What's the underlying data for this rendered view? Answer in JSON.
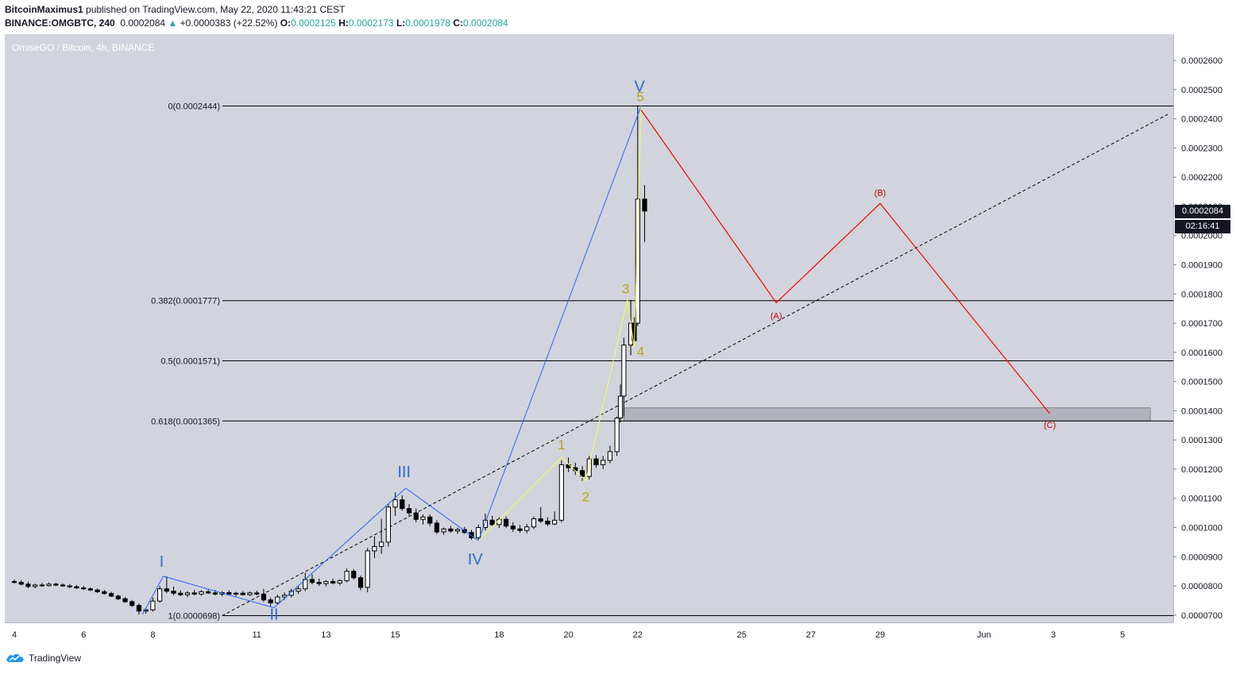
{
  "header": {
    "author": "BitcoinMaximus1",
    "published_text": " published on TradingView.com, May 22, 2020 11:43:21 CEST",
    "symbol_line": "BINANCE:OMGBTC, 240",
    "last": "0.0002084",
    "change": "+0.0000383 (+22.52%)",
    "o_label": "O:",
    "o": "0.0002125",
    "h_label": "H:",
    "h": "0.0002173",
    "l_label": "L:",
    "l": "0.0001978",
    "c_label": "C:",
    "c": "0.0002084"
  },
  "chart_title": "OmiseGO / Bitcoin, 4h, BINANCE",
  "price_tag": "0.0002084",
  "countdown_tag": "02:16:41",
  "footer": {
    "brand": "TradingView"
  },
  "colors": {
    "bg": "#d1d4dc",
    "blue": "#2962ff",
    "yellow": "#fdfd55",
    "red": "#ff0000",
    "wave_label": "#2b6bd6",
    "sub_label": "#b7a510",
    "abc": "#c00000"
  },
  "chart_data": {
    "type": "candlestick",
    "title": "OmiseGO / Bitcoin, 4h, BINANCE",
    "ylim": [
      6.75e-05,
      0.000269
    ],
    "y_ticks": [
      "0.0000700",
      "0.0000800",
      "0.0000900",
      "0.0001000",
      "0.0001100",
      "0.0001200",
      "0.0001300",
      "0.0001400",
      "0.0001500",
      "0.0001600",
      "0.0001700",
      "0.0001800",
      "0.0001900",
      "0.0002000",
      "0.0002100",
      "0.0002200",
      "0.0002300",
      "0.0002400",
      "0.0002500",
      "0.0002600"
    ],
    "x_ticks": [
      {
        "label": "4",
        "day": 4
      },
      {
        "label": "6",
        "day": 6
      },
      {
        "label": "8",
        "day": 8
      },
      {
        "label": "11",
        "day": 11
      },
      {
        "label": "13",
        "day": 13
      },
      {
        "label": "15",
        "day": 15
      },
      {
        "label": "18",
        "day": 18
      },
      {
        "label": "20",
        "day": 20
      },
      {
        "label": "22",
        "day": 22
      },
      {
        "label": "25",
        "day": 25
      },
      {
        "label": "27",
        "day": 27
      },
      {
        "label": "29",
        "day": 29
      },
      {
        "label": "Jun",
        "day": 32
      },
      {
        "label": "3",
        "day": 34
      },
      {
        "label": "5",
        "day": 36
      }
    ],
    "fib_levels": [
      {
        "label": "0(0.0002444)",
        "value": 0.0002444
      },
      {
        "label": "0.382(0.0001777)",
        "value": 0.0001777
      },
      {
        "label": "0.5(0.0001571)",
        "value": 0.0001571
      },
      {
        "label": "0.618(0.0001365)",
        "value": 0.0001365
      },
      {
        "label": "1(0.0000698)",
        "value": 6.98e-05
      }
    ],
    "support_zone": {
      "from_day": 21.6,
      "to_day": 36.8,
      "low": 0.0001365,
      "high": 0.000141
    },
    "trendline": {
      "points": [
        {
          "day": 10,
          "price": 6.98e-05
        },
        {
          "day": 37.3,
          "price": 0.0002415
        }
      ]
    },
    "major_waves": {
      "points": [
        {
          "day": 7.7,
          "price": 7.02e-05,
          "label": ""
        },
        {
          "day": 8.3,
          "price": 8.33e-05,
          "label": "I"
        },
        {
          "day": 11.5,
          "price": 7.25e-05,
          "label": "II"
        },
        {
          "day": 15.3,
          "price": 0.0001135,
          "label": "III"
        },
        {
          "day": 17.4,
          "price": 9.55e-05,
          "label": "IV"
        },
        {
          "day": 22.1,
          "price": 0.0002444,
          "label": "V"
        }
      ]
    },
    "minor_waves": {
      "points": [
        {
          "day": 17.4,
          "price": 9.55e-05,
          "label": ""
        },
        {
          "day": 19.8,
          "price": 0.000124,
          "label": "1"
        },
        {
          "day": 20.5,
          "price": 0.000116,
          "label": "2"
        },
        {
          "day": 21.7,
          "price": 0.000178,
          "label": "3"
        },
        {
          "day": 21.9,
          "price": 0.0001615,
          "label": "4"
        },
        {
          "day": 22.1,
          "price": 0.0002444,
          "label": "5"
        }
      ]
    },
    "correction": {
      "points": [
        {
          "day": 22.1,
          "price": 0.000243,
          "label": ""
        },
        {
          "day": 26.0,
          "price": 0.000177,
          "label": "(A)"
        },
        {
          "day": 29.0,
          "price": 0.000211,
          "label": "(B)"
        },
        {
          "day": 33.9,
          "price": 0.000139,
          "label": "(C)"
        }
      ]
    },
    "candles": [
      {
        "day": 4.0,
        "o": 8.15e-05,
        "h": 8.22e-05,
        "l": 8.08e-05,
        "c": 8.12e-05
      },
      {
        "day": 4.2,
        "o": 8.12e-05,
        "h": 8.2e-05,
        "l": 8.02e-05,
        "c": 8.06e-05
      },
      {
        "day": 4.4,
        "o": 8.06e-05,
        "h": 8.15e-05,
        "l": 7.92e-05,
        "c": 7.98e-05
      },
      {
        "day": 4.6,
        "o": 7.98e-05,
        "h": 8.08e-05,
        "l": 7.92e-05,
        "c": 8.03e-05
      },
      {
        "day": 4.8,
        "o": 8.03e-05,
        "h": 8.1e-05,
        "l": 7.97e-05,
        "c": 8.01e-05
      },
      {
        "day": 5.0,
        "o": 8.01e-05,
        "h": 8.12e-05,
        "l": 7.98e-05,
        "c": 8.06e-05
      },
      {
        "day": 5.2,
        "o": 8.06e-05,
        "h": 8.11e-05,
        "l": 7.99e-05,
        "c": 8.03e-05
      },
      {
        "day": 5.4,
        "o": 8.03e-05,
        "h": 8.09e-05,
        "l": 7.97e-05,
        "c": 8e-05
      },
      {
        "day": 5.6,
        "o": 8e-05,
        "h": 8.06e-05,
        "l": 7.92e-05,
        "c": 7.97e-05
      },
      {
        "day": 5.8,
        "o": 7.97e-05,
        "h": 8.03e-05,
        "l": 7.9e-05,
        "c": 7.93e-05
      },
      {
        "day": 6.0,
        "o": 7.93e-05,
        "h": 8e-05,
        "l": 7.86e-05,
        "c": 7.9e-05
      },
      {
        "day": 6.2,
        "o": 7.9e-05,
        "h": 7.95e-05,
        "l": 7.82e-05,
        "c": 7.86e-05
      },
      {
        "day": 6.4,
        "o": 7.86e-05,
        "h": 7.91e-05,
        "l": 7.76e-05,
        "c": 7.8e-05
      },
      {
        "day": 6.6,
        "o": 7.8e-05,
        "h": 7.86e-05,
        "l": 7.7e-05,
        "c": 7.74e-05
      },
      {
        "day": 6.8,
        "o": 7.74e-05,
        "h": 7.8e-05,
        "l": 7.62e-05,
        "c": 7.65e-05
      },
      {
        "day": 7.0,
        "o": 7.65e-05,
        "h": 7.7e-05,
        "l": 7.52e-05,
        "c": 7.56e-05
      },
      {
        "day": 7.2,
        "o": 7.56e-05,
        "h": 7.62e-05,
        "l": 7.42e-05,
        "c": 7.46e-05
      },
      {
        "day": 7.4,
        "o": 7.46e-05,
        "h": 7.52e-05,
        "l": 7.28e-05,
        "c": 7.33e-05
      },
      {
        "day": 7.6,
        "o": 7.33e-05,
        "h": 7.4e-05,
        "l": 7.02e-05,
        "c": 7.14e-05
      },
      {
        "day": 7.8,
        "o": 7.14e-05,
        "h": 7.25e-05,
        "l": 7.05e-05,
        "c": 7.18e-05
      },
      {
        "day": 8.0,
        "o": 7.18e-05,
        "h": 7.6e-05,
        "l": 7.12e-05,
        "c": 7.48e-05
      },
      {
        "day": 8.2,
        "o": 7.48e-05,
        "h": 8e-05,
        "l": 7.42e-05,
        "c": 7.9e-05
      },
      {
        "day": 8.4,
        "o": 7.9e-05,
        "h": 8.33e-05,
        "l": 7.75e-05,
        "c": 7.82e-05
      },
      {
        "day": 8.6,
        "o": 7.82e-05,
        "h": 7.98e-05,
        "l": 7.68e-05,
        "c": 7.75e-05
      },
      {
        "day": 8.8,
        "o": 7.75e-05,
        "h": 7.85e-05,
        "l": 7.65e-05,
        "c": 7.7e-05
      },
      {
        "day": 9.0,
        "o": 7.7e-05,
        "h": 7.82e-05,
        "l": 7.62e-05,
        "c": 7.76e-05
      },
      {
        "day": 9.2,
        "o": 7.76e-05,
        "h": 7.86e-05,
        "l": 7.68e-05,
        "c": 7.72e-05
      },
      {
        "day": 9.4,
        "o": 7.72e-05,
        "h": 7.85e-05,
        "l": 7.66e-05,
        "c": 7.8e-05
      },
      {
        "day": 9.6,
        "o": 7.8e-05,
        "h": 7.9e-05,
        "l": 7.72e-05,
        "c": 7.76e-05
      },
      {
        "day": 9.8,
        "o": 7.76e-05,
        "h": 7.86e-05,
        "l": 7.68e-05,
        "c": 7.72e-05
      },
      {
        "day": 10.0,
        "o": 7.72e-05,
        "h": 7.82e-05,
        "l": 7.65e-05,
        "c": 7.77e-05
      },
      {
        "day": 10.2,
        "o": 7.77e-05,
        "h": 7.85e-05,
        "l": 7.68e-05,
        "c": 7.72e-05
      },
      {
        "day": 10.4,
        "o": 7.72e-05,
        "h": 7.8e-05,
        "l": 7.64e-05,
        "c": 7.75e-05
      },
      {
        "day": 10.6,
        "o": 7.75e-05,
        "h": 7.82e-05,
        "l": 7.68e-05,
        "c": 7.7e-05
      },
      {
        "day": 10.8,
        "o": 7.7e-05,
        "h": 7.81e-05,
        "l": 7.65e-05,
        "c": 7.76e-05
      },
      {
        "day": 11.0,
        "o": 7.76e-05,
        "h": 7.84e-05,
        "l": 7.68e-05,
        "c": 7.72e-05
      },
      {
        "day": 11.2,
        "o": 7.72e-05,
        "h": 7.9e-05,
        "l": 7.45e-05,
        "c": 7.52e-05
      },
      {
        "day": 11.4,
        "o": 7.52e-05,
        "h": 7.6e-05,
        "l": 7.3e-05,
        "c": 7.42e-05
      },
      {
        "day": 11.6,
        "o": 7.42e-05,
        "h": 7.7e-05,
        "l": 7.35e-05,
        "c": 7.62e-05
      },
      {
        "day": 11.8,
        "o": 7.62e-05,
        "h": 7.78e-05,
        "l": 7.52e-05,
        "c": 7.68e-05
      },
      {
        "day": 12.0,
        "o": 7.68e-05,
        "h": 7.9e-05,
        "l": 7.6e-05,
        "c": 7.82e-05
      },
      {
        "day": 12.2,
        "o": 7.82e-05,
        "h": 8e-05,
        "l": 7.72e-05,
        "c": 7.9e-05
      },
      {
        "day": 12.4,
        "o": 7.9e-05,
        "h": 8.45e-05,
        "l": 7.82e-05,
        "c": 8.22e-05
      },
      {
        "day": 12.6,
        "o": 8.22e-05,
        "h": 8.4e-05,
        "l": 8.05e-05,
        "c": 8.12e-05
      },
      {
        "day": 12.8,
        "o": 8.12e-05,
        "h": 8.25e-05,
        "l": 8e-05,
        "c": 8.08e-05
      },
      {
        "day": 13.0,
        "o": 8.08e-05,
        "h": 8.2e-05,
        "l": 7.98e-05,
        "c": 8.15e-05
      },
      {
        "day": 13.2,
        "o": 8.15e-05,
        "h": 8.25e-05,
        "l": 8.05e-05,
        "c": 8.1e-05
      },
      {
        "day": 13.4,
        "o": 8.1e-05,
        "h": 8.22e-05,
        "l": 8.02e-05,
        "c": 8.18e-05
      },
      {
        "day": 13.6,
        "o": 8.18e-05,
        "h": 8.6e-05,
        "l": 8.12e-05,
        "c": 8.5e-05
      },
      {
        "day": 13.8,
        "o": 8.5e-05,
        "h": 8.58e-05,
        "l": 8.22e-05,
        "c": 8.28e-05
      },
      {
        "day": 14.0,
        "o": 8.28e-05,
        "h": 8.35e-05,
        "l": 7.85e-05,
        "c": 7.95e-05
      },
      {
        "day": 14.2,
        "o": 7.95e-05,
        "h": 9.3e-05,
        "l": 7.78e-05,
        "c": 9.2e-05
      },
      {
        "day": 14.4,
        "o": 9.2e-05,
        "h": 9.7e-05,
        "l": 8.95e-05,
        "c": 9.35e-05
      },
      {
        "day": 14.6,
        "o": 9.35e-05,
        "h": 0.000103,
        "l": 9.1e-05,
        "c": 9.5e-05
      },
      {
        "day": 14.8,
        "o": 9.5e-05,
        "h": 0.000108,
        "l": 9.35e-05,
        "c": 0.000107
      },
      {
        "day": 15.0,
        "o": 0.000107,
        "h": 0.000112,
        "l": 0.000104,
        "c": 0.0001095
      },
      {
        "day": 15.2,
        "o": 0.0001095,
        "h": 0.000111,
        "l": 0.0001058,
        "c": 0.0001065
      },
      {
        "day": 15.4,
        "o": 0.0001065,
        "h": 0.000108,
        "l": 0.000104,
        "c": 0.000105
      },
      {
        "day": 15.6,
        "o": 0.000105,
        "h": 0.0001065,
        "l": 0.0001018,
        "c": 0.0001028
      },
      {
        "day": 15.8,
        "o": 0.0001028,
        "h": 0.0001045,
        "l": 0.000101,
        "c": 0.0001036
      },
      {
        "day": 16.0,
        "o": 0.0001036,
        "h": 0.0001045,
        "l": 0.0001005,
        "c": 0.0001015
      },
      {
        "day": 16.2,
        "o": 0.0001015,
        "h": 0.0001025,
        "l": 9.78e-05,
        "c": 9.85e-05
      },
      {
        "day": 16.4,
        "o": 9.85e-05,
        "h": 0.0001,
        "l": 9.75e-05,
        "c": 9.95e-05
      },
      {
        "day": 16.6,
        "o": 9.95e-05,
        "h": 0.0001005,
        "l": 9.82e-05,
        "c": 9.88e-05
      },
      {
        "day": 16.8,
        "o": 9.88e-05,
        "h": 0.0001,
        "l": 9.78e-05,
        "c": 9.93e-05
      },
      {
        "day": 17.0,
        "o": 9.93e-05,
        "h": 0.0001002,
        "l": 9.78e-05,
        "c": 9.83e-05
      },
      {
        "day": 17.2,
        "o": 9.83e-05,
        "h": 9.92e-05,
        "l": 9.58e-05,
        "c": 9.65e-05
      },
      {
        "day": 17.4,
        "o": 9.65e-05,
        "h": 0.000101,
        "l": 9.55e-05,
        "c": 0.0001
      },
      {
        "day": 17.6,
        "o": 0.0001,
        "h": 0.0001048,
        "l": 9.9e-05,
        "c": 0.0001025
      },
      {
        "day": 17.8,
        "o": 0.0001025,
        "h": 0.000104,
        "l": 0.0001005,
        "c": 0.000101
      },
      {
        "day": 18.0,
        "o": 0.000101,
        "h": 0.0001035,
        "l": 9.98e-05,
        "c": 0.0001028
      },
      {
        "day": 18.2,
        "o": 0.0001028,
        "h": 0.0001038,
        "l": 9.98e-05,
        "c": 0.0001005
      },
      {
        "day": 18.4,
        "o": 0.0001005,
        "h": 0.0001018,
        "l": 9.85e-05,
        "c": 9.95e-05
      },
      {
        "day": 18.6,
        "o": 9.95e-05,
        "h": 0.0001008,
        "l": 9.82e-05,
        "c": 9.9e-05
      },
      {
        "day": 18.8,
        "o": 9.9e-05,
        "h": 0.0001012,
        "l": 9.8e-05,
        "c": 0.0001002
      },
      {
        "day": 19.0,
        "o": 0.0001002,
        "h": 0.0001038,
        "l": 9.95e-05,
        "c": 0.000103
      },
      {
        "day": 19.2,
        "o": 0.000103,
        "h": 0.000107,
        "l": 0.0001015,
        "c": 0.0001022
      },
      {
        "day": 19.4,
        "o": 0.0001022,
        "h": 0.0001035,
        "l": 0.0001005,
        "c": 0.0001012
      },
      {
        "day": 19.6,
        "o": 0.0001012,
        "h": 0.0001055,
        "l": 0.0001008,
        "c": 0.0001025
      },
      {
        "day": 19.8,
        "o": 0.0001025,
        "h": 0.000123,
        "l": 0.0001018,
        "c": 0.0001215
      },
      {
        "day": 20.0,
        "o": 0.0001215,
        "h": 0.000124,
        "l": 0.000119,
        "c": 0.0001205
      },
      {
        "day": 20.2,
        "o": 0.0001205,
        "h": 0.0001222,
        "l": 0.000118,
        "c": 0.0001195
      },
      {
        "day": 20.4,
        "o": 0.0001195,
        "h": 0.000121,
        "l": 0.000116,
        "c": 0.0001175
      },
      {
        "day": 20.6,
        "o": 0.0001175,
        "h": 0.0001245,
        "l": 0.0001165,
        "c": 0.0001235
      },
      {
        "day": 20.8,
        "o": 0.0001235,
        "h": 0.0001248,
        "l": 0.0001205,
        "c": 0.0001215
      },
      {
        "day": 21.0,
        "o": 0.0001215,
        "h": 0.0001245,
        "l": 0.00012,
        "c": 0.000123
      },
      {
        "day": 21.2,
        "o": 0.000123,
        "h": 0.000128,
        "l": 0.000122,
        "c": 0.000126
      },
      {
        "day": 21.4,
        "o": 0.000126,
        "h": 0.000138,
        "l": 0.0001245,
        "c": 0.0001375
      },
      {
        "day": 21.5,
        "o": 0.0001375,
        "h": 0.000149,
        "l": 0.000136,
        "c": 0.000145
      },
      {
        "day": 21.6,
        "o": 0.000145,
        "h": 0.000165,
        "l": 0.000138,
        "c": 0.0001625
      },
      {
        "day": 21.8,
        "o": 0.0001625,
        "h": 0.000178,
        "l": 0.000159,
        "c": 0.00017
      },
      {
        "day": 21.9,
        "o": 0.00017,
        "h": 0.000172,
        "l": 0.000162,
        "c": 0.000164
      },
      {
        "day": 22.0,
        "o": 0.00017,
        "h": 0.0002444,
        "l": 0.000169,
        "c": 0.0002125
      },
      {
        "day": 22.2,
        "o": 0.0002125,
        "h": 0.0002173,
        "l": 0.0001978,
        "c": 0.0002084
      }
    ]
  }
}
